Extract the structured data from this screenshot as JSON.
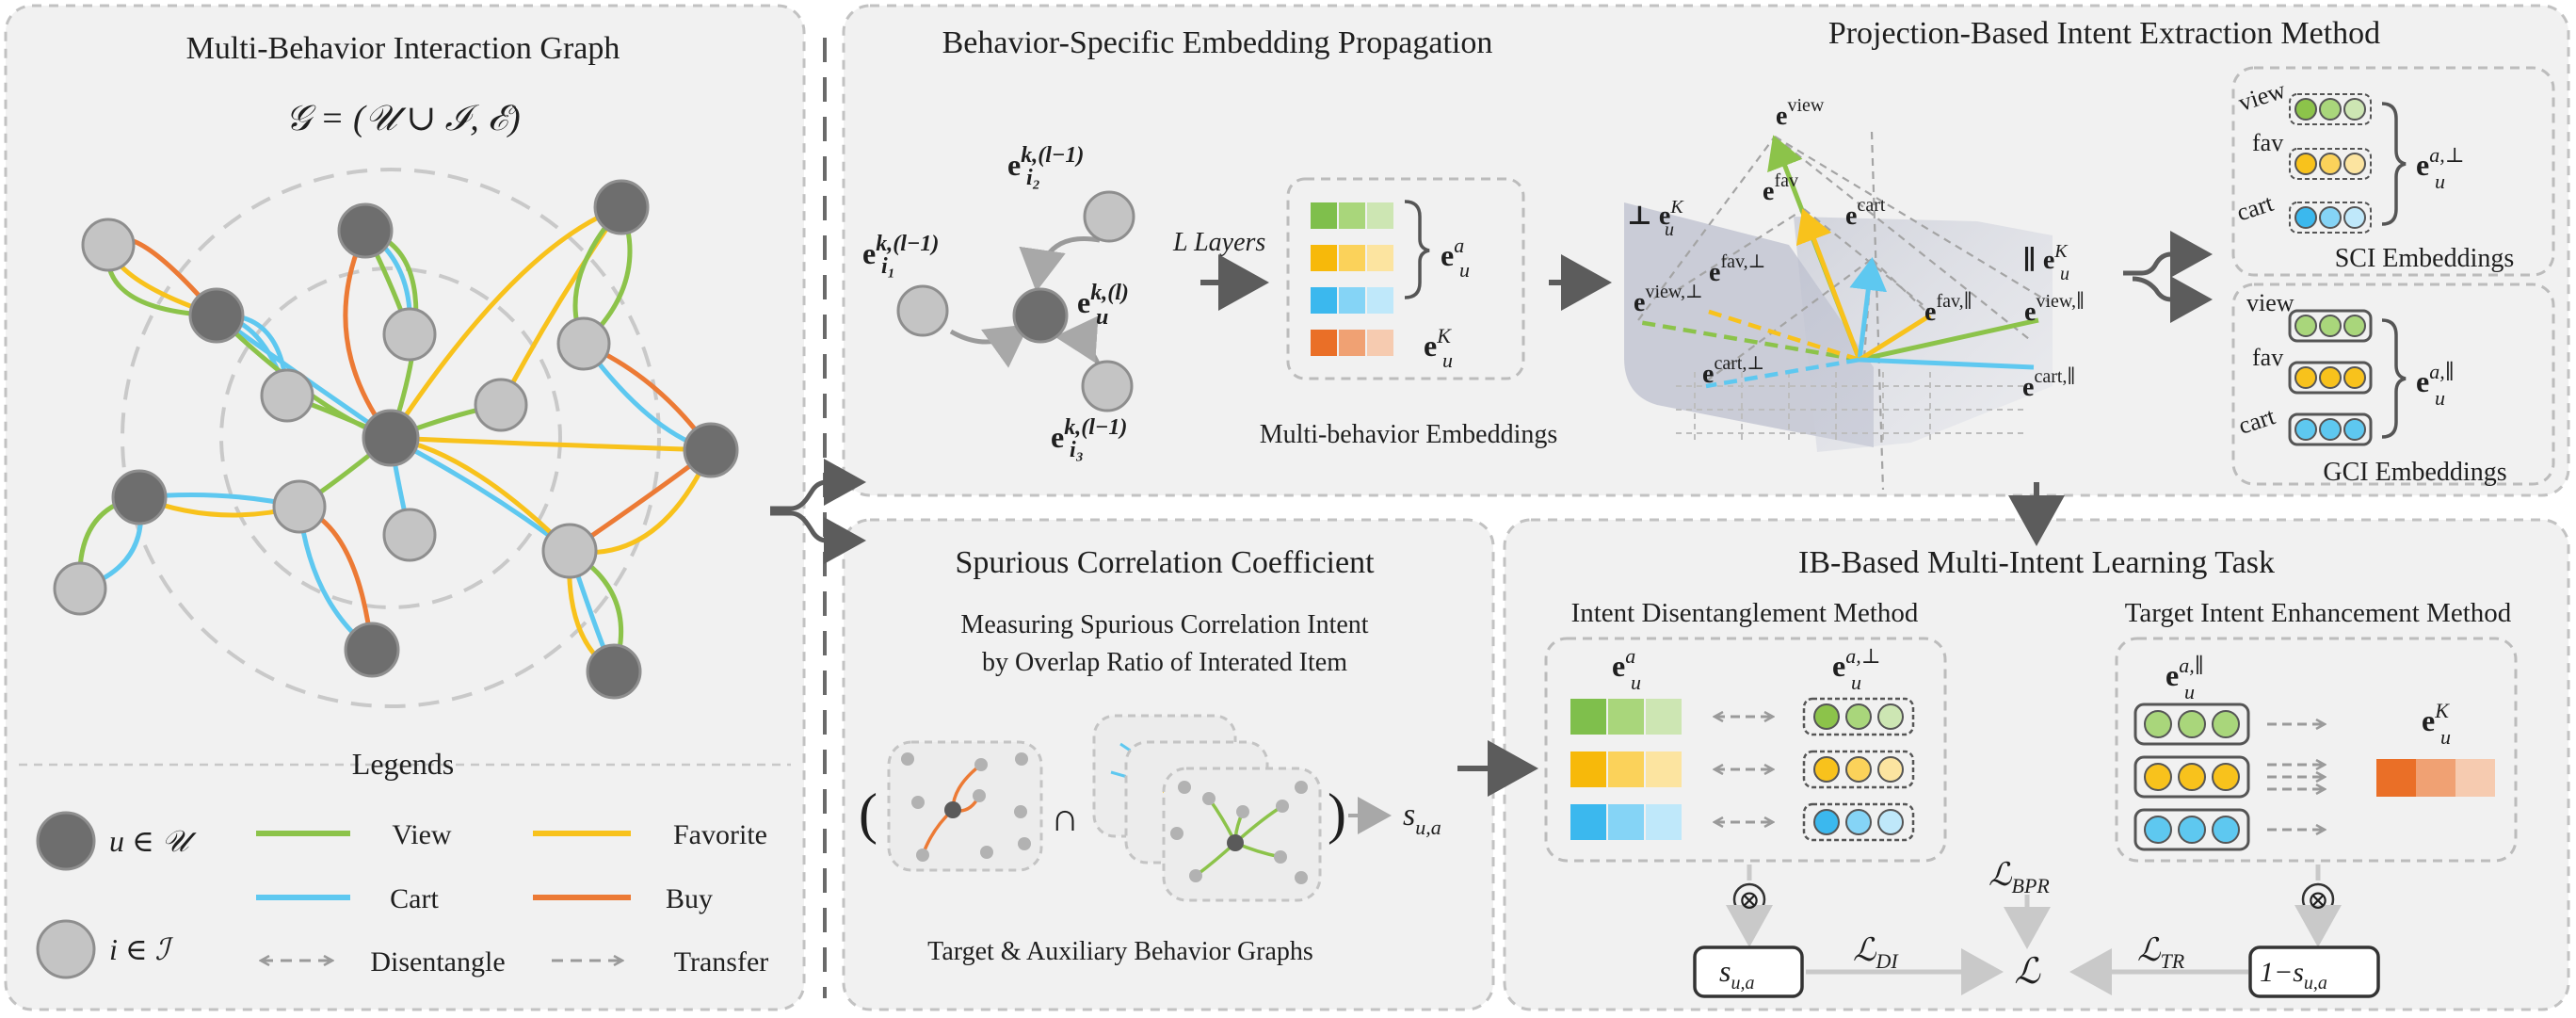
{
  "colors": {
    "view": "#8cc34a",
    "cart": "#5ec8f0",
    "favorite": "#f8c21c",
    "buy": "#ec7a35",
    "node_user": "#6e6e6e",
    "node_item": "#c4c4c4",
    "panel_bg": "#f1f1f1",
    "panel_border": "#bcbcbc",
    "arrow": "#606060"
  },
  "graph_panel": {
    "title": "Multi-Behavior Interaction Graph",
    "formula": "𝒢 = (𝒰 ∪ ℐ, ℰ)",
    "legends_title": "Legends",
    "user_label": "u ∈ 𝒰",
    "item_label": "i ∈ ℐ",
    "view_label": "View",
    "favorite_label": "Favorite",
    "cart_label": "Cart",
    "buy_label": "Buy",
    "disentangle_label": "Disentangle",
    "transfer_label": "Transfer"
  },
  "propagation": {
    "title": "Behavior-Specific Embedding Propagation",
    "e_i1": "e",
    "e_i1_sup": "k,(l−1)",
    "e_i1_sub": "i₁",
    "e_i2": "e",
    "e_i2_sup": "k,(l−1)",
    "e_i2_sub": "i₂",
    "e_i3": "e",
    "e_i3_sup": "k,(l−1)",
    "e_i3_sub": "i₃",
    "e_u": "e",
    "e_u_sup": "k,(l)",
    "e_u_sub": "u",
    "layers_label": "L Layers",
    "eua": "e",
    "eua_sup": "a",
    "eua_sub": "u",
    "euk": "e",
    "euk_sup": "K",
    "euk_sub": "u",
    "embeddings_label": "Multi-behavior Embeddings"
  },
  "projection": {
    "title": "Projection-Based Intent Extraction Method",
    "perp_ek": "⊥ e",
    "perp_ek_sup": "K",
    "perp_ek_sub": "u",
    "par_ek": "∥ e",
    "par_ek_sup": "K",
    "par_ek_sub": "u",
    "v_view": "view",
    "v_fav": "fav",
    "v_cart": "cart",
    "v_fav_perp": "fav,⊥",
    "v_view_perp": "view,⊥",
    "v_cart_perp": "cart,⊥",
    "v_fav_par": "fav,∥",
    "v_view_par": "view,∥",
    "v_cart_par": "cart,∥",
    "e": "e",
    "u": "u"
  },
  "sci": {
    "row_labels": [
      "view",
      "fav",
      "cart"
    ],
    "symbol": "e",
    "symbol_sup": "a,⊥",
    "symbol_sub": "u",
    "caption": "SCI Embeddings"
  },
  "gci": {
    "row_labels": [
      "view",
      "fav",
      "cart"
    ],
    "symbol": "e",
    "symbol_sup": "a,∥",
    "symbol_sub": "u",
    "caption": "GCI Embeddings"
  },
  "spurious": {
    "title": "Spurious Correlation Coefficient",
    "desc_line1": "Measuring Spurious Correlation Intent",
    "desc_line2": "by Overlap Ratio of Interated Item",
    "cap": "∩",
    "s_ua": "s",
    "s_ua_sub": "u,a",
    "caption": "Target & Auxiliary Behavior Graphs"
  },
  "ib": {
    "title": "IB-Based Multi-Intent Learning Task",
    "disentangle_title": "Intent Disentanglement Method",
    "enhance_title": "Target Intent Enhancement Method",
    "eua": "e",
    "eua_sup": "a",
    "eua_sub": "u",
    "eua_perp_sup": "a,⊥",
    "eua_par_sup": "a,∥",
    "euk_sup": "K",
    "otimes": "⊗",
    "s_box": "s",
    "s_box_sub": "u,a",
    "one_minus_s": "1−s",
    "one_minus_s_sub": "u,a",
    "l_di": "ℒ",
    "l_di_sub": "DI",
    "l_tr": "ℒ",
    "l_tr_sub": "TR",
    "l_bpr": "ℒ",
    "l_bpr_sub": "BPR",
    "l_total": "ℒ"
  }
}
